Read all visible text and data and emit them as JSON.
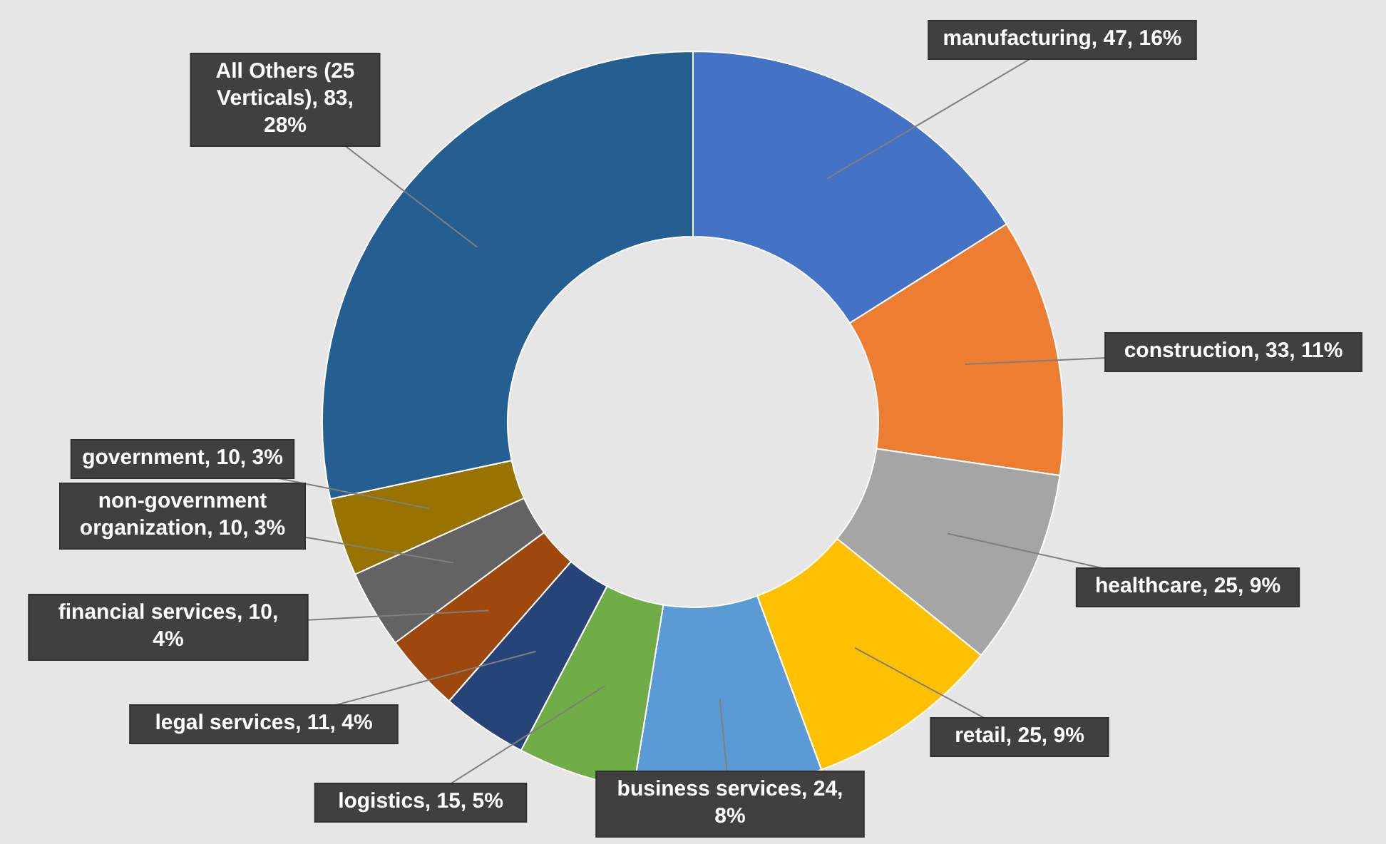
{
  "chart_data": {
    "type": "donut",
    "categories": [
      "manufacturing",
      "construction",
      "healthcare",
      "retail",
      "business services",
      "logistics",
      "legal services",
      "financial services",
      "non-government organization",
      "government",
      "All Others (25 Verticals)"
    ],
    "values": [
      47,
      33,
      25,
      25,
      24,
      15,
      11,
      10,
      10,
      10,
      83
    ],
    "colors": [
      "#4472c4",
      "#ed7d31",
      "#a5a5a5",
      "#ffc000",
      "#5b9bd5",
      "#70ad47",
      "#264478",
      "#9e480e",
      "#636363",
      "#997300",
      "#255e91"
    ],
    "value_labels": [
      "47, 16%",
      "33, 11%",
      "25, 9%",
      "25, 9%",
      "24, 8%",
      "15, 5%",
      "11, 4%",
      "10, 4%",
      "10, 3%",
      "10, 3%",
      "83, 28%"
    ]
  }
}
